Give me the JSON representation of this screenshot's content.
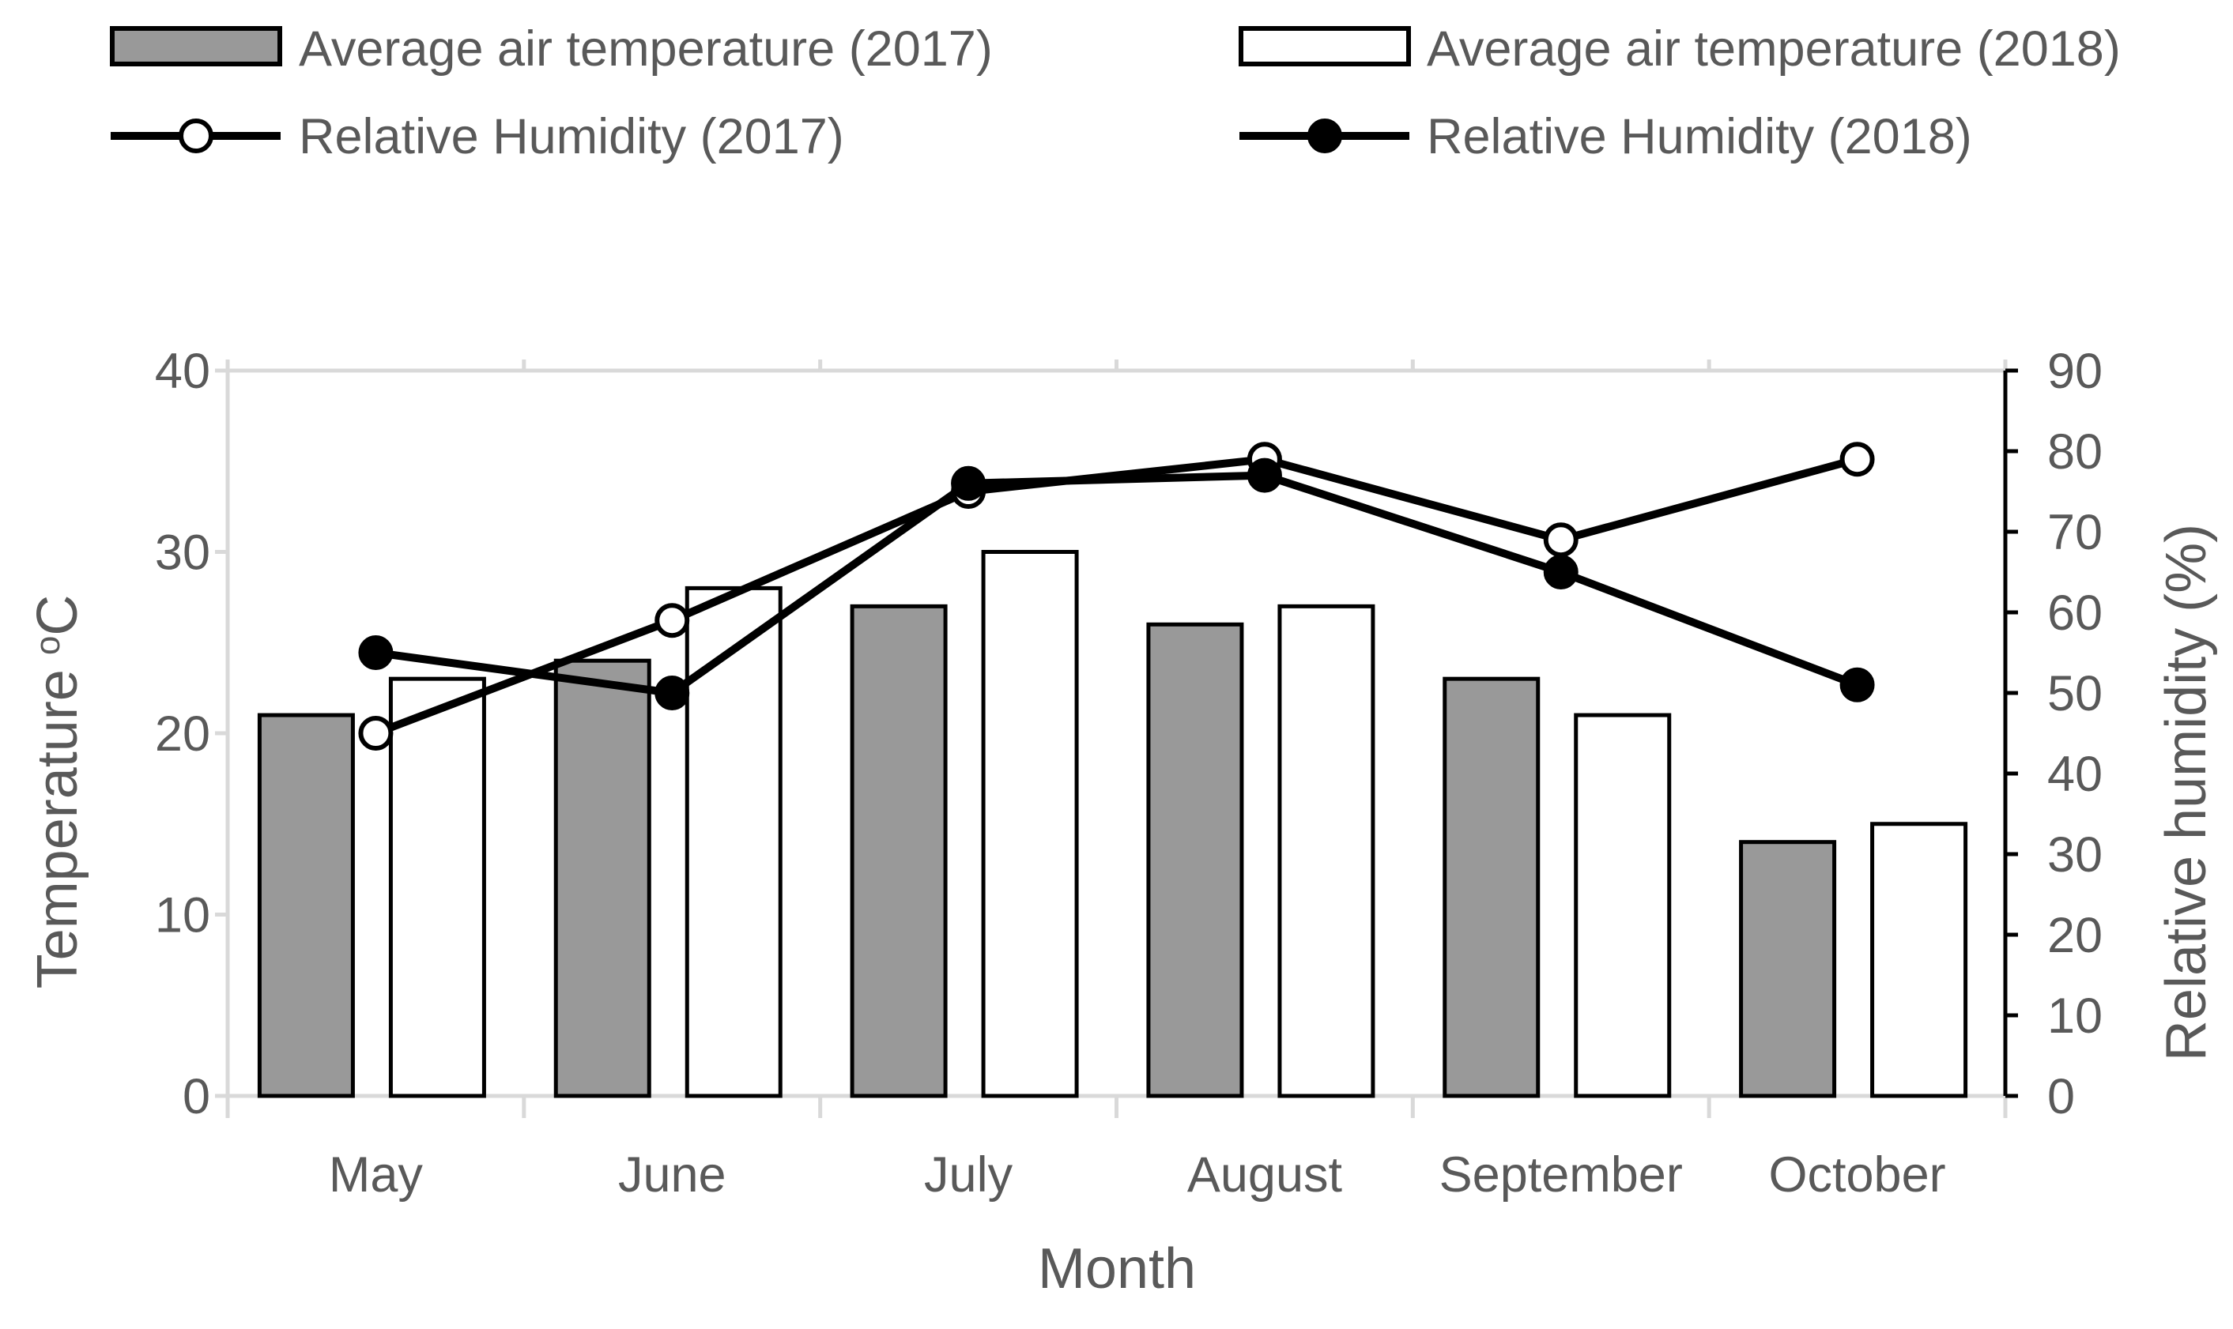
{
  "chart_data": {
    "type": "bar+line",
    "categories": [
      "May",
      "June",
      "July",
      "August",
      "September",
      "October"
    ],
    "bar_series": [
      {
        "name": "Average air temperature (2017)",
        "values": [
          21,
          24,
          27,
          26,
          23,
          14
        ],
        "fill": "#999999"
      },
      {
        "name": "Average air temperature (2018)",
        "values": [
          23,
          28,
          30,
          27,
          21,
          15
        ],
        "fill": "#ffffff"
      }
    ],
    "line_series": [
      {
        "name": "Relative Humidity (2017)",
        "values": [
          45,
          59,
          75,
          79,
          69,
          79
        ],
        "marker_fill": "#ffffff"
      },
      {
        "name": "Relative Humidity (2018)",
        "values": [
          55,
          50,
          76,
          77,
          65,
          51
        ],
        "marker_fill": "#000000"
      }
    ],
    "xlabel": "Month",
    "ylabel_left": "Temperature",
    "ylabel_left_unit": "oC",
    "ylabel_right": "Relative humidity (%)",
    "ylim_left": [
      0,
      40
    ],
    "yticks_left": [
      0,
      10,
      20,
      30,
      40
    ],
    "ylim_right": [
      0,
      90
    ],
    "yticks_right": [
      0,
      10,
      20,
      30,
      40,
      50,
      60,
      70,
      80,
      90
    ],
    "grid": "horizontal-top-only",
    "legend_position": "top"
  },
  "colors": {
    "text": "#595959",
    "axis": "#d9d9d9",
    "ink": "#000000"
  }
}
